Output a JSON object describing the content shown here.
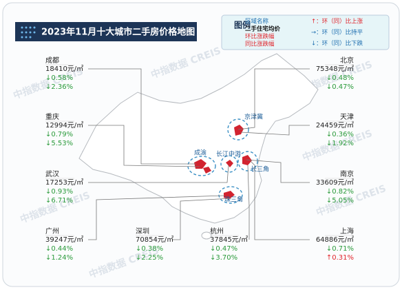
{
  "header": {
    "title": "2023年11月十大城市二手房价格地图"
  },
  "watermark": "中指数据 CREIS",
  "legend": {
    "title": "图例",
    "items": [
      "区域名称",
      "二手住宅均价",
      "环比涨跌幅",
      "同比涨跌幅"
    ],
    "symbols": [
      "↑：环（同）比上涨",
      "→：环（同）比持平",
      "↓：环（同）比下跌"
    ]
  },
  "regions": [
    "京津冀",
    "成渝",
    "长江中游",
    "长三角",
    "珠三角"
  ],
  "cities": [
    {
      "name": "成都",
      "price": "18410元/㎡",
      "mom": "↓0.58%",
      "yoy": "↓2.36%"
    },
    {
      "name": "重庆",
      "price": "12994元/㎡",
      "mom": "↓0.79%",
      "yoy": "↓5.53%"
    },
    {
      "name": "武汉",
      "price": "17253元/㎡",
      "mom": "↓0.93%",
      "yoy": "↓6.71%"
    },
    {
      "name": "广州",
      "price": "39247元/㎡",
      "mom": "↓0.44%",
      "yoy": "↓1.24%"
    },
    {
      "name": "深圳",
      "price": "70854元/㎡",
      "mom": "↓0.38%",
      "yoy": "↓2.25%"
    },
    {
      "name": "杭州",
      "price": "37845元/㎡",
      "mom": "↓0.47%",
      "yoy": "↓3.70%"
    },
    {
      "name": "北京",
      "price": "75348元/㎡",
      "mom": "↓0.48%",
      "yoy": "↓0.47%"
    },
    {
      "name": "天津",
      "price": "24459元/㎡",
      "mom": "↓0.36%",
      "yoy": "↓1.92%"
    },
    {
      "name": "南京",
      "price": "33609元/㎡",
      "mom": "↓0.82%",
      "yoy": "↓5.05%"
    },
    {
      "name": "上海",
      "price": "64886元/㎡",
      "mom": "↓0.71%",
      "yoy": "↑0.31%"
    }
  ]
}
